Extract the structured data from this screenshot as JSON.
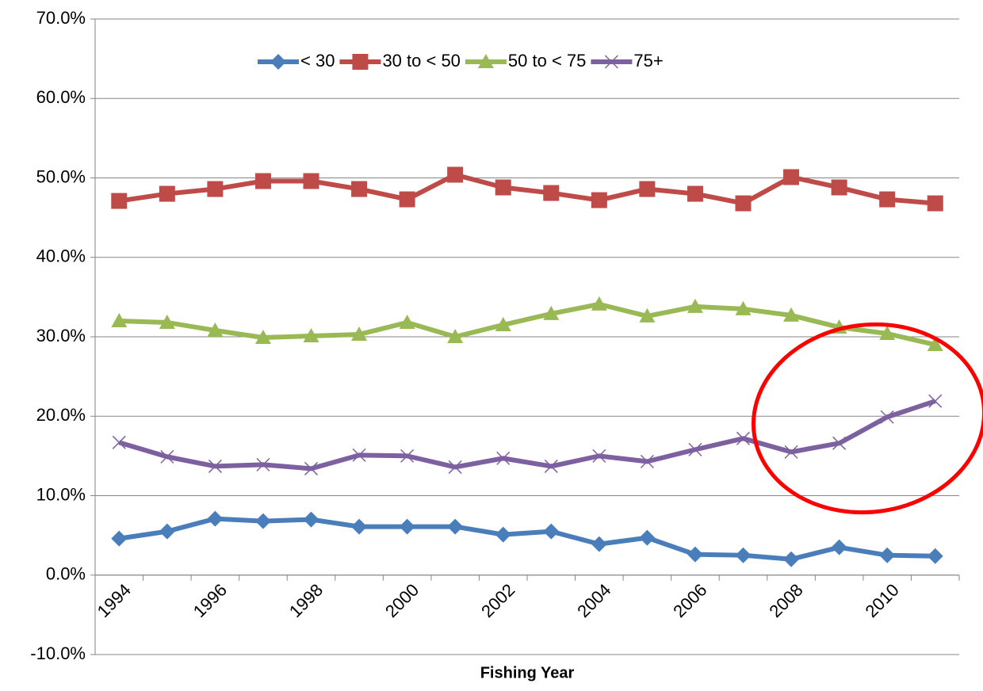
{
  "chart_data": {
    "type": "line",
    "x_label": "Fishing Year",
    "categories": [
      "1994",
      null,
      "1996",
      null,
      "1998",
      null,
      "2000",
      null,
      "2002",
      null,
      "2004",
      null,
      "2006",
      null,
      "2008",
      null,
      "2010",
      null
    ],
    "series": [
      {
        "name": "< 30",
        "color": "#4a7ebb",
        "marker": "diamond",
        "values": [
          4.6,
          5.5,
          7.1,
          6.8,
          7.0,
          6.1,
          6.1,
          6.1,
          5.1,
          5.5,
          3.9,
          4.7,
          2.6,
          2.5,
          2.0,
          3.5,
          2.5,
          2.4
        ]
      },
      {
        "name": "30 to < 50",
        "color": "#be4b48",
        "marker": "square",
        "values": [
          47.1,
          48.0,
          48.6,
          49.6,
          49.6,
          48.6,
          47.3,
          50.4,
          48.8,
          48.1,
          47.2,
          48.6,
          48.0,
          46.8,
          50.1,
          48.8,
          47.3,
          46.8
        ]
      },
      {
        "name": "50 to < 75",
        "color": "#98b954",
        "marker": "triangle",
        "values": [
          32.0,
          31.8,
          30.8,
          29.9,
          30.1,
          30.3,
          31.8,
          30.0,
          31.5,
          32.9,
          34.1,
          32.6,
          33.8,
          33.5,
          32.7,
          31.2,
          30.4,
          29.0
        ]
      },
      {
        "name": "75+",
        "color": "#7d60a0",
        "marker": "x",
        "values": [
          16.7,
          14.9,
          13.7,
          13.9,
          13.4,
          15.1,
          15.0,
          13.6,
          14.7,
          13.7,
          15.0,
          14.3,
          15.8,
          17.2,
          15.5,
          16.6,
          19.9,
          21.9
        ]
      }
    ],
    "ylim": [
      -10,
      70
    ],
    "yticks": [
      {
        "value": -10,
        "label": "-10.0%"
      },
      {
        "value": 0,
        "label": "0.0%"
      },
      {
        "value": 10,
        "label": "10.0%"
      },
      {
        "value": 20,
        "label": "20.0%"
      },
      {
        "value": 30,
        "label": "30.0%"
      },
      {
        "value": 40,
        "label": "40.0%"
      },
      {
        "value": 50,
        "label": "50.0%"
      },
      {
        "value": 60,
        "label": "60.0%"
      },
      {
        "value": 70,
        "label": "70.0%"
      }
    ],
    "grid": true,
    "legend": "top"
  }
}
